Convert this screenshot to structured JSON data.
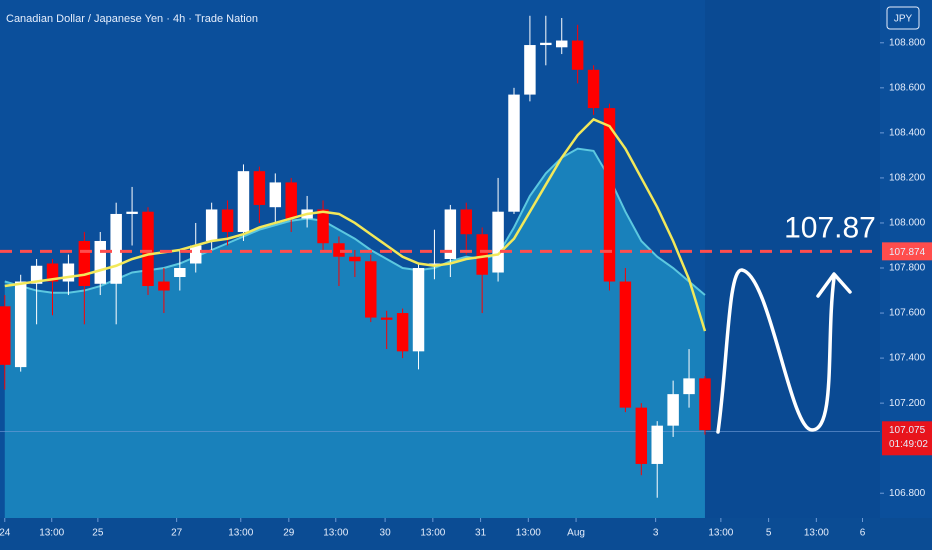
{
  "chart_data": {
    "type": "candlestick",
    "title": "Canadian Dollar / Japanese Yen · 4h · Trade Nation",
    "currency": "JPY",
    "up_color": "#ffffff",
    "down_color": "#ff0000",
    "open": [
      107.63,
      107.36,
      107.73,
      107.82,
      107.74,
      107.92,
      107.73,
      107.73,
      108.04,
      108.05,
      107.74,
      107.76,
      107.82,
      107.92,
      108.06,
      107.96,
      108.23,
      108.07,
      108.18,
      108.02,
      108.06,
      107.91,
      107.85,
      107.83,
      107.58,
      107.6,
      107.43,
      107.81,
      107.84,
      108.06,
      107.95,
      107.78,
      108.05,
      108.57,
      108.79,
      108.78,
      108.81,
      108.68,
      108.51,
      107.74,
      107.18,
      106.93,
      107.1,
      107.24,
      107.31
    ],
    "high": [
      107.68,
      107.77,
      107.84,
      107.84,
      107.86,
      107.96,
      107.96,
      108.09,
      108.16,
      108.07,
      107.8,
      107.88,
      108.0,
      108.09,
      108.1,
      108.26,
      108.25,
      108.22,
      108.2,
      108.12,
      108.1,
      107.94,
      107.88,
      107.86,
      107.61,
      107.62,
      107.82,
      107.97,
      108.08,
      108.09,
      107.98,
      108.2,
      108.6,
      108.92,
      108.92,
      108.91,
      108.88,
      108.7,
      108.53,
      107.8,
      107.2,
      107.12,
      107.3,
      107.44,
      107.32
    ],
    "low": [
      107.26,
      107.34,
      107.55,
      107.59,
      107.68,
      107.55,
      107.68,
      107.55,
      107.9,
      107.68,
      107.6,
      107.7,
      107.78,
      107.88,
      107.9,
      107.92,
      108.0,
      108.0,
      107.96,
      107.98,
      107.88,
      107.72,
      107.76,
      107.56,
      107.44,
      107.4,
      107.35,
      107.75,
      107.76,
      107.86,
      107.6,
      107.74,
      108.04,
      108.54,
      108.7,
      108.75,
      108.62,
      108.48,
      107.7,
      107.16,
      106.88,
      106.78,
      107.05,
      107.18,
      107.06
    ],
    "close": [
      107.37,
      107.74,
      107.81,
      107.74,
      107.82,
      107.72,
      107.92,
      108.04,
      108.05,
      107.72,
      107.7,
      107.8,
      107.9,
      108.06,
      107.96,
      108.23,
      108.08,
      108.18,
      108.02,
      108.06,
      107.91,
      107.85,
      107.83,
      107.58,
      107.57,
      107.43,
      107.8,
      107.82,
      108.06,
      107.95,
      107.77,
      108.05,
      108.57,
      108.79,
      108.8,
      108.81,
      108.68,
      108.51,
      107.74,
      107.18,
      106.93,
      107.1,
      107.24,
      107.31,
      107.08
    ],
    "series": [
      {
        "color": "#5cc8e0",
        "values": [
          107.74,
          107.72,
          107.7,
          107.69,
          107.69,
          107.7,
          107.72,
          107.75,
          107.78,
          107.79,
          107.8,
          107.82,
          107.85,
          107.88,
          107.91,
          107.94,
          107.97,
          107.99,
          108.01,
          108.02,
          108.01,
          107.97,
          107.93,
          107.88,
          107.84,
          107.8,
          107.79,
          107.8,
          107.83,
          107.85,
          107.84,
          107.86,
          107.98,
          108.12,
          108.22,
          108.29,
          108.33,
          108.32,
          108.2,
          108.05,
          107.92,
          107.85,
          107.8,
          107.74,
          107.68
        ]
      },
      {
        "color": "#f2e85a",
        "values": [
          107.72,
          107.73,
          107.74,
          107.75,
          107.76,
          107.77,
          107.79,
          107.81,
          107.84,
          107.86,
          107.87,
          107.88,
          107.9,
          107.92,
          107.93,
          107.95,
          107.98,
          108.0,
          108.02,
          108.04,
          108.05,
          108.04,
          108.0,
          107.95,
          107.9,
          107.85,
          107.82,
          107.81,
          107.82,
          107.84,
          107.85,
          107.86,
          107.93,
          108.05,
          108.17,
          108.29,
          108.39,
          108.46,
          108.43,
          108.33,
          108.2,
          108.07,
          107.92,
          107.75,
          107.52
        ]
      }
    ],
    "ylim": [
      106.69,
      108.99
    ],
    "yticks": [
      {
        "value": 108.8,
        "label": "108.800"
      },
      {
        "value": 108.6,
        "label": "108.600"
      },
      {
        "value": 108.4,
        "label": "108.400"
      },
      {
        "value": 108.2,
        "label": "108.200"
      },
      {
        "value": 108.0,
        "label": "108.000"
      },
      {
        "value": 107.8,
        "label": "107.800"
      },
      {
        "value": 107.6,
        "label": "107.600"
      },
      {
        "value": 107.4,
        "label": "107.400"
      },
      {
        "value": 107.2,
        "label": "107.200"
      },
      {
        "value": 106.8,
        "label": "106.800"
      }
    ],
    "xlim": [
      -0.3,
      55.0
    ],
    "xticks": [
      {
        "value": 0,
        "label": "24"
      },
      {
        "value": 2.95,
        "label": "13:00"
      },
      {
        "value": 5.85,
        "label": "25"
      },
      {
        "value": 10.8,
        "label": "27"
      },
      {
        "value": 14.83,
        "label": "13:00"
      },
      {
        "value": 17.85,
        "label": "29"
      },
      {
        "value": 20.8,
        "label": "13:00"
      },
      {
        "value": 23.9,
        "label": "30"
      },
      {
        "value": 26.9,
        "label": "13:00"
      },
      {
        "value": 29.9,
        "label": "31"
      },
      {
        "value": 32.9,
        "label": "13:00"
      },
      {
        "value": 35.9,
        "label": "Aug"
      },
      {
        "value": 40.9,
        "label": "3"
      },
      {
        "value": 45.0,
        "label": "13:00"
      },
      {
        "value": 48.0,
        "label": "5"
      },
      {
        "value": 51.0,
        "label": "13:00"
      },
      {
        "value": 53.9,
        "label": "6"
      }
    ],
    "reference_line": {
      "value": 107.874,
      "label": "107.874",
      "color": "#ff4d4d"
    },
    "annotation": "107.87",
    "last_price": {
      "value": 107.075,
      "label": "107.075"
    },
    "countdown": "01:49:02"
  }
}
